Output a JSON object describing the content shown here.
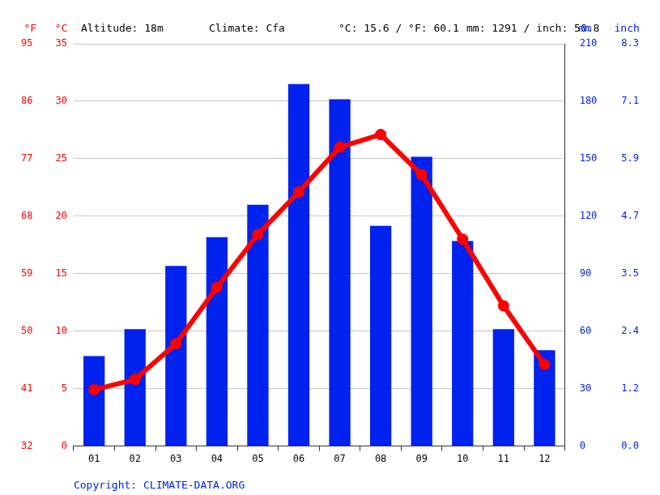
{
  "chart_data": {
    "type": "bar",
    "annotations": [
      "Altitude: 18m",
      "Climate: Cfa",
      "°C: 15.6 / °F: 60.1",
      "mm: 1291 / inch: 50.8"
    ],
    "footer": "Copyright: CLIMATE-DATA.ORG",
    "categories": [
      "01",
      "02",
      "03",
      "04",
      "05",
      "06",
      "07",
      "08",
      "09",
      "10",
      "11",
      "12"
    ],
    "series": [
      {
        "type": "line",
        "color": "#ff0000",
        "marker": "circle",
        "line_style": "solid",
        "values": [
          4.9,
          5.8,
          8.9,
          13.8,
          18.4,
          22.1,
          26.0,
          27.1,
          23.6,
          18.0,
          12.2,
          7.1
        ]
      },
      {
        "type": "bar",
        "color": "#0022ee",
        "axis": "y2",
        "values": [
          47,
          61,
          94,
          109,
          126,
          189,
          181,
          115,
          151,
          107,
          61,
          50
        ]
      }
    ],
    "ylabel": "°C",
    "ylim": [
      0,
      35
    ],
    "yticks": [
      0,
      5,
      10,
      15,
      20,
      25,
      30,
      35
    ],
    "ylabel_f": "°F",
    "yticks_f": [
      {
        "value": 0,
        "label": "32"
      },
      {
        "value": 5,
        "label": "41"
      },
      {
        "value": 10,
        "label": "50"
      },
      {
        "value": 15,
        "label": "59"
      },
      {
        "value": 20,
        "label": "68"
      },
      {
        "value": 25,
        "label": "77"
      },
      {
        "value": 30,
        "label": "86"
      },
      {
        "value": 35,
        "label": "95"
      }
    ],
    "y2label": "mm",
    "y2lim": [
      0,
      210
    ],
    "y2ticks": [
      0,
      30,
      60,
      90,
      120,
      150,
      180,
      210
    ],
    "y2label_inch": "inch",
    "y2ticks_inch": [
      {
        "value": 0,
        "label": "0.0"
      },
      {
        "value": 30,
        "label": "1.2"
      },
      {
        "value": 60,
        "label": "2.4"
      },
      {
        "value": 90,
        "label": "3.5"
      },
      {
        "value": 120,
        "label": "4.7"
      },
      {
        "value": 150,
        "label": "5.9"
      },
      {
        "value": 180,
        "label": "7.1"
      },
      {
        "value": 210,
        "label": "8.3"
      }
    ],
    "grid": true
  }
}
